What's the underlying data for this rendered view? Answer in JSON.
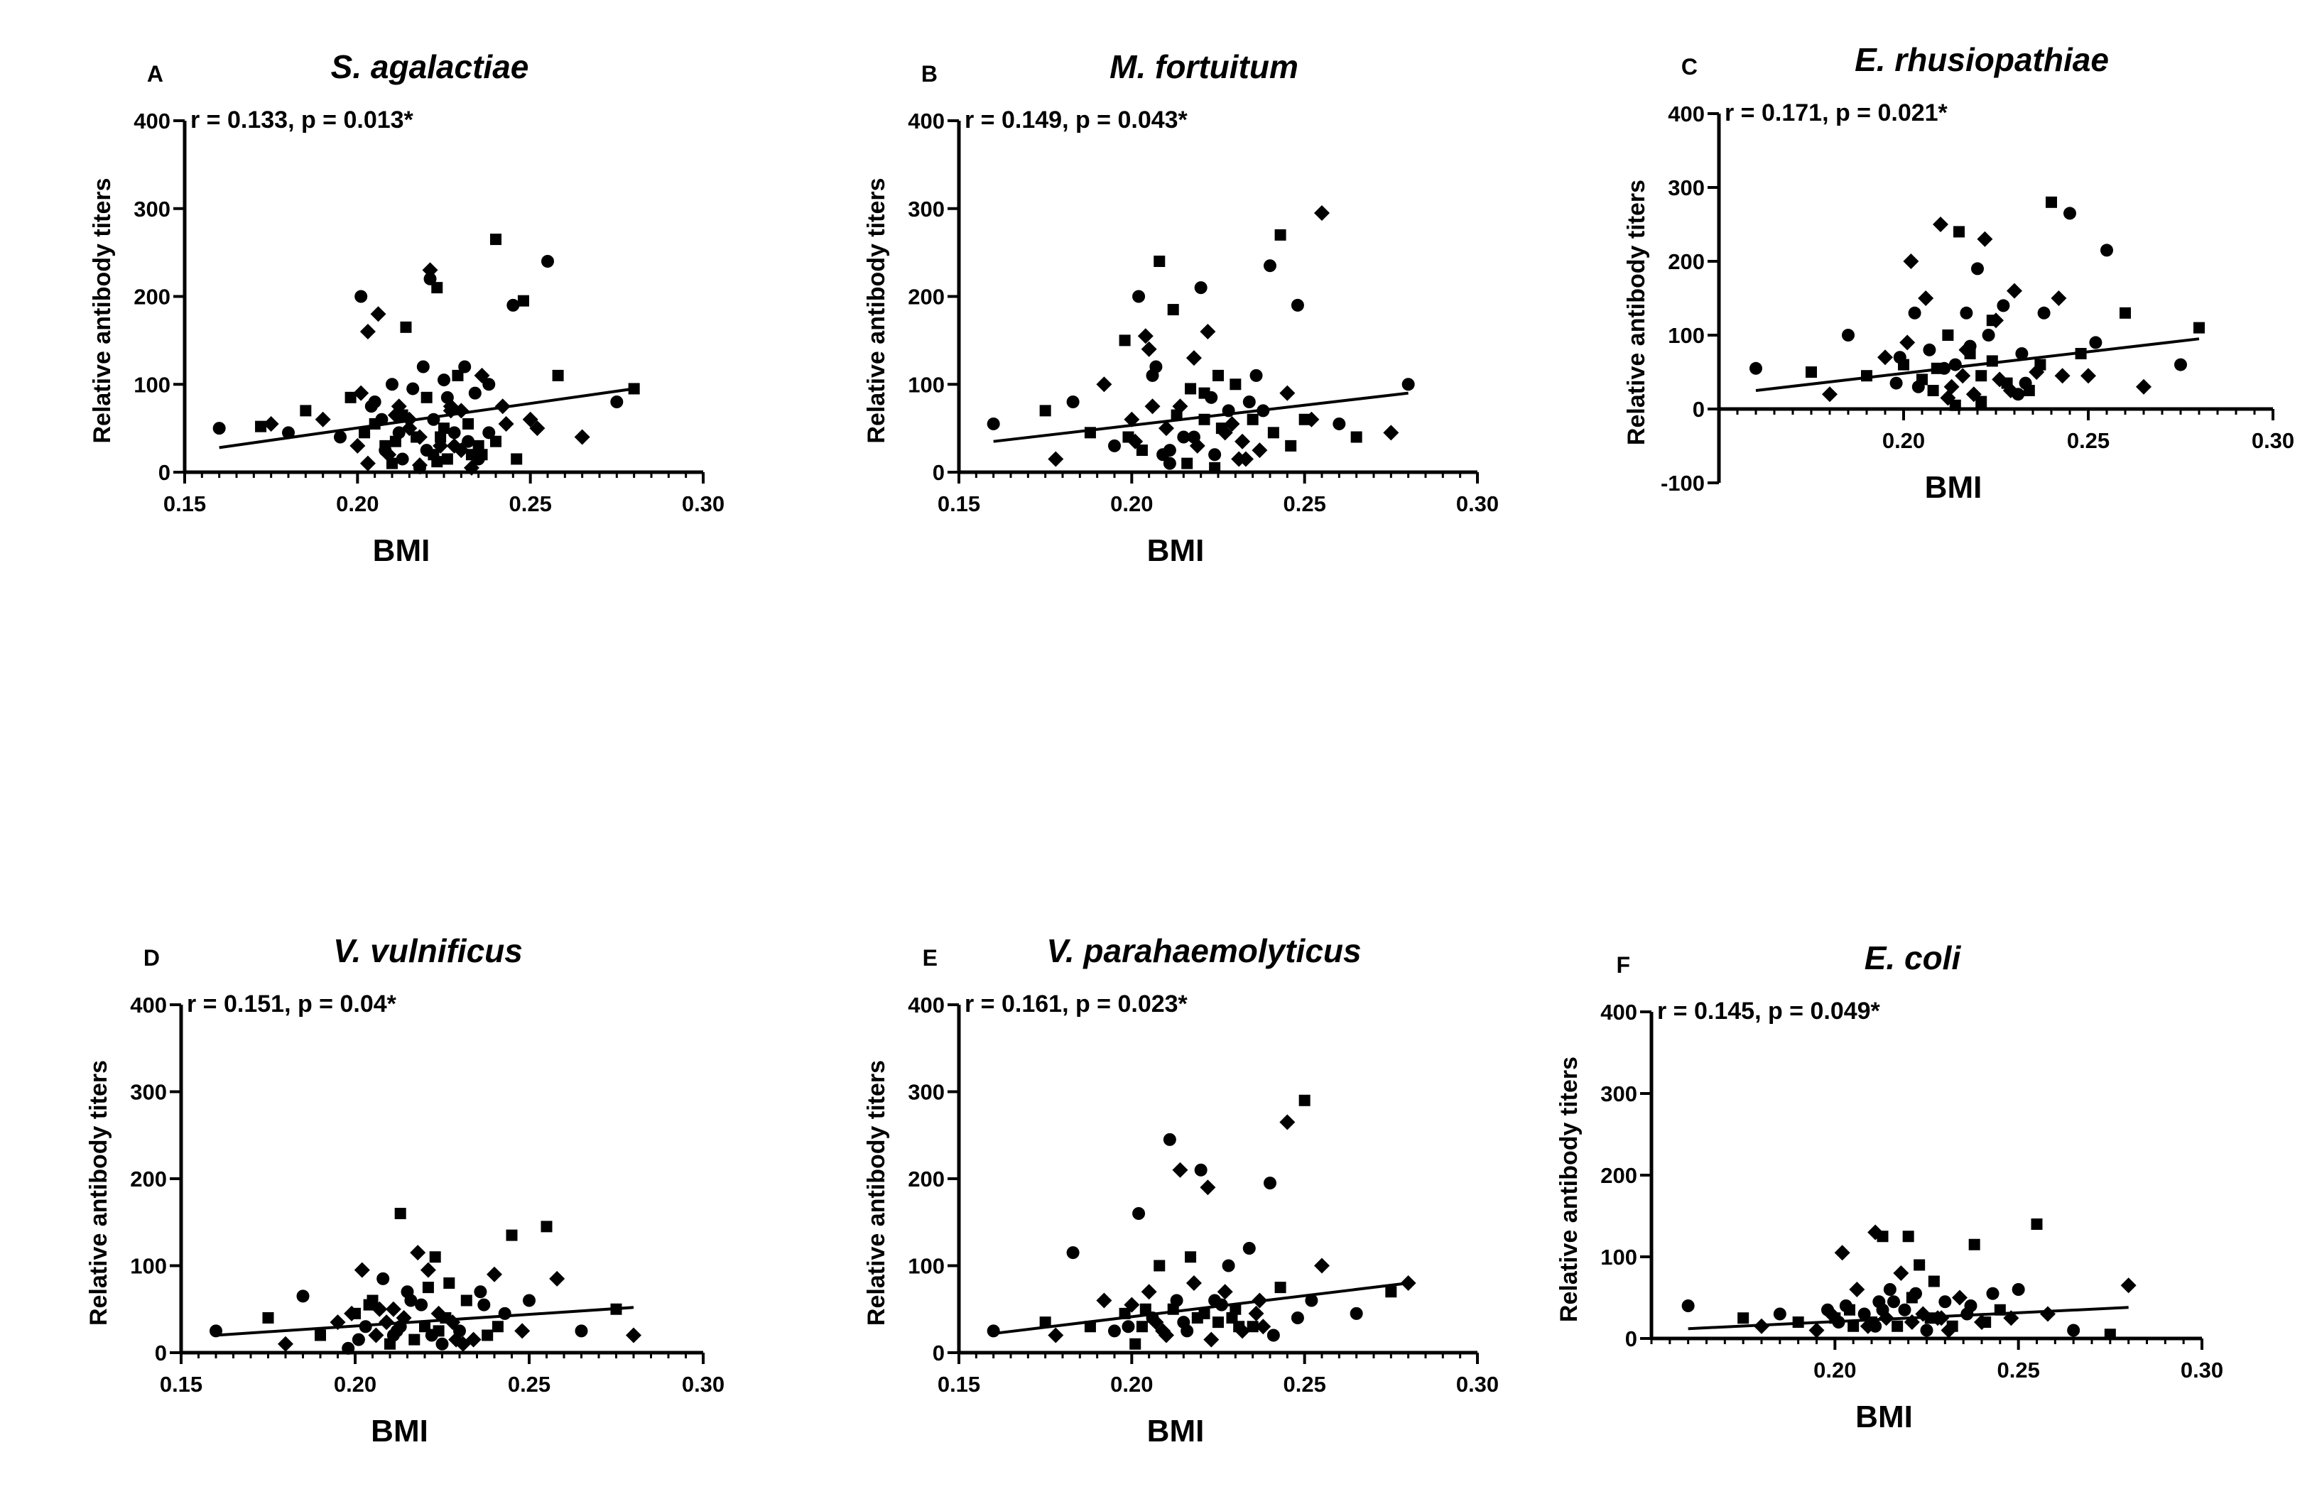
{
  "chart_data": [
    {
      "type": "scatter",
      "panel_label": "A",
      "title": "S. agalactiae",
      "annotation": "r = 0.133, p = 0.013*",
      "xlabel": "BMI",
      "ylabel": "Relative antibody titers",
      "xlim": [
        0.15,
        0.3
      ],
      "ylim": [
        0,
        400
      ],
      "xticks": [
        "0.15",
        "0.20",
        "0.25",
        "0.30"
      ],
      "yticks": [
        "0",
        "100",
        "200",
        "300",
        "400"
      ],
      "regression": {
        "x": [
          0.16,
          0.28
        ],
        "y": [
          28,
          95
        ]
      },
      "series": [
        {
          "name": "S. agalactiae",
          "x": [
            0.16,
            0.172,
            0.175,
            0.18,
            0.185,
            0.19,
            0.195,
            0.198,
            0.2,
            0.201,
            0.202,
            0.203,
            0.204,
            0.205,
            0.206,
            0.207,
            0.208,
            0.209,
            0.21,
            0.211,
            0.212,
            0.213,
            0.214,
            0.215,
            0.216,
            0.217,
            0.218,
            0.219,
            0.22,
            0.221,
            0.222,
            0.223,
            0.224,
            0.225,
            0.226,
            0.227,
            0.228,
            0.229,
            0.23,
            0.231,
            0.232,
            0.233,
            0.234,
            0.235,
            0.236,
            0.238,
            0.24,
            0.242,
            0.245,
            0.248,
            0.25,
            0.255,
            0.258,
            0.265,
            0.275,
            0.28,
            0.203,
            0.208,
            0.213,
            0.218,
            0.221,
            0.223,
            0.227,
            0.232,
            0.236,
            0.243,
            0.205,
            0.21,
            0.215,
            0.22,
            0.225,
            0.23,
            0.235,
            0.24,
            0.201,
            0.212,
            0.222,
            0.228,
            0.238,
            0.246,
            0.252,
            0.218,
            0.224,
            0.211,
            0.226,
            0.233
          ],
          "values": [
            50,
            52,
            55,
            45,
            70,
            60,
            40,
            85,
            30,
            200,
            45,
            10,
            75,
            55,
            180,
            60,
            30,
            20,
            100,
            35,
            75,
            15,
            165,
            50,
            95,
            40,
            8,
            120,
            85,
            230,
            60,
            210,
            30,
            105,
            15,
            75,
            45,
            110,
            25,
            120,
            55,
            5,
            90,
            30,
            110,
            45,
            265,
            75,
            190,
            195,
            60,
            240,
            110,
            40,
            80,
            95,
            160,
            25,
            65,
            40,
            220,
            12,
            70,
            35,
            20,
            55,
            80,
            10,
            60,
            25,
            50,
            70,
            15,
            35,
            90,
            45,
            20,
            30,
            100,
            15,
            50,
            5,
            40,
            65,
            85,
            20
          ]
        }
      ]
    },
    {
      "type": "scatter",
      "panel_label": "B",
      "title": "M. fortuitum",
      "annotation": "r = 0.149, p = 0.043*",
      "xlabel": "BMI",
      "ylabel": "Relative antibody titers",
      "xlim": [
        0.15,
        0.3
      ],
      "ylim": [
        0,
        400
      ],
      "xticks": [
        "0.15",
        "0.20",
        "0.25",
        "0.30"
      ],
      "yticks": [
        "0",
        "100",
        "200",
        "300",
        "400"
      ],
      "regression": {
        "x": [
          0.16,
          0.28
        ],
        "y": [
          35,
          90
        ]
      },
      "series": [
        {
          "name": "M. fortuitum",
          "x": [
            0.16,
            0.175,
            0.178,
            0.183,
            0.188,
            0.192,
            0.195,
            0.198,
            0.2,
            0.202,
            0.203,
            0.205,
            0.206,
            0.208,
            0.21,
            0.211,
            0.212,
            0.214,
            0.215,
            0.217,
            0.218,
            0.22,
            0.221,
            0.222,
            0.224,
            0.225,
            0.227,
            0.228,
            0.23,
            0.232,
            0.234,
            0.235,
            0.237,
            0.24,
            0.243,
            0.245,
            0.248,
            0.25,
            0.255,
            0.26,
            0.265,
            0.275,
            0.28,
            0.199,
            0.204,
            0.209,
            0.213,
            0.219,
            0.223,
            0.226,
            0.231,
            0.236,
            0.241,
            0.201,
            0.207,
            0.216,
            0.229,
            0.238,
            0.246,
            0.252,
            0.211,
            0.221,
            0.233,
            0.218,
            0.224,
            0.206
          ],
          "values": [
            55,
            70,
            15,
            80,
            45,
            100,
            30,
            150,
            60,
            200,
            25,
            140,
            110,
            240,
            50,
            10,
            185,
            75,
            40,
            95,
            130,
            210,
            60,
            160,
            20,
            110,
            45,
            70,
            100,
            35,
            80,
            60,
            25,
            235,
            270,
            90,
            190,
            60,
            295,
            55,
            40,
            45,
            100,
            40,
            155,
            20,
            65,
            30,
            85,
            50,
            15,
            110,
            45,
            35,
            120,
            10,
            55,
            70,
            30,
            60,
            25,
            90,
            15,
            40,
            5,
            75
          ]
        }
      ]
    },
    {
      "type": "scatter",
      "panel_label": "C",
      "title": "E. rhusiopathiae",
      "annotation": "r = 0.171, p = 0.021*",
      "xlabel": "BMI",
      "ylabel": "Relative antibody titers",
      "xlim": [
        0.15,
        0.3
      ],
      "ylim": [
        -100,
        400
      ],
      "xticks": [
        "0.20",
        "0.25",
        "0.30"
      ],
      "yticks": [
        "-100",
        "0",
        "100",
        "200",
        "300",
        "400"
      ],
      "regression": {
        "x": [
          0.16,
          0.28
        ],
        "y": [
          25,
          95
        ]
      },
      "series": [
        {
          "name": "E. rhusiopathiae",
          "x": [
            0.16,
            0.175,
            0.18,
            0.185,
            0.19,
            0.195,
            0.198,
            0.2,
            0.202,
            0.203,
            0.205,
            0.206,
            0.207,
            0.208,
            0.21,
            0.211,
            0.212,
            0.213,
            0.214,
            0.215,
            0.216,
            0.217,
            0.218,
            0.219,
            0.22,
            0.221,
            0.222,
            0.223,
            0.224,
            0.225,
            0.227,
            0.228,
            0.23,
            0.232,
            0.234,
            0.236,
            0.238,
            0.24,
            0.242,
            0.245,
            0.248,
            0.25,
            0.255,
            0.26,
            0.265,
            0.275,
            0.28,
            0.201,
            0.204,
            0.209,
            0.212,
            0.218,
            0.221,
            0.226,
            0.231,
            0.237,
            0.243,
            0.199,
            0.214,
            0.229,
            0.252,
            0.224,
            0.217,
            0.233
          ],
          "values": [
            55,
            50,
            20,
            100,
            45,
            70,
            35,
            60,
            200,
            130,
            40,
            150,
            80,
            25,
            250,
            55,
            100,
            30,
            60,
            240,
            45,
            130,
            75,
            20,
            190,
            45,
            230,
            100,
            65,
            120,
            140,
            35,
            160,
            75,
            25,
            50,
            130,
            280,
            150,
            265,
            75,
            45,
            215,
            130,
            30,
            60,
            110,
            90,
            30,
            55,
            15,
            85,
            10,
            40,
            20,
            60,
            45,
            70,
            5,
            25,
            90,
            120,
            80,
            35
          ]
        }
      ]
    },
    {
      "type": "scatter",
      "panel_label": "D",
      "title": "V. vulnificus",
      "annotation": "r = 0.151, p = 0.04*",
      "xlabel": "BMI",
      "ylabel": "Relative antibody titers",
      "xlim": [
        0.15,
        0.3
      ],
      "ylim": [
        0,
        400
      ],
      "xticks": [
        "0.15",
        "0.20",
        "0.25",
        "0.30"
      ],
      "yticks": [
        "0",
        "100",
        "200",
        "300",
        "400"
      ],
      "regression": {
        "x": [
          0.16,
          0.28
        ],
        "y": [
          20,
          52
        ]
      },
      "series": [
        {
          "name": "V. vulnificus",
          "x": [
            0.16,
            0.175,
            0.18,
            0.185,
            0.19,
            0.195,
            0.198,
            0.2,
            0.202,
            0.203,
            0.205,
            0.206,
            0.208,
            0.21,
            0.211,
            0.212,
            0.213,
            0.214,
            0.215,
            0.217,
            0.218,
            0.219,
            0.22,
            0.221,
            0.222,
            0.223,
            0.224,
            0.225,
            0.227,
            0.228,
            0.23,
            0.232,
            0.234,
            0.236,
            0.238,
            0.24,
            0.243,
            0.245,
            0.248,
            0.25,
            0.255,
            0.258,
            0.265,
            0.275,
            0.28,
            0.201,
            0.204,
            0.209,
            0.216,
            0.226,
            0.231,
            0.237,
            0.241,
            0.199,
            0.211,
            0.221,
            0.229,
            0.213,
            0.224,
            0.207
          ],
          "values": [
            25,
            40,
            10,
            65,
            20,
            35,
            5,
            45,
            95,
            30,
            60,
            20,
            85,
            10,
            50,
            25,
            160,
            40,
            70,
            15,
            115,
            55,
            30,
            95,
            20,
            110,
            45,
            10,
            80,
            35,
            25,
            60,
            15,
            70,
            20,
            90,
            45,
            135,
            25,
            60,
            145,
            85,
            25,
            50,
            20,
            15,
            55,
            35,
            60,
            40,
            10,
            55,
            30,
            45,
            20,
            75,
            15,
            30,
            25,
            50
          ]
        }
      ]
    },
    {
      "type": "scatter",
      "panel_label": "E",
      "title": "V. parahaemolyticus",
      "annotation": "r = 0.161, p = 0.023*",
      "xlabel": "BMI",
      "ylabel": "Relative antibody titers",
      "xlim": [
        0.15,
        0.3
      ],
      "ylim": [
        0,
        400
      ],
      "xticks": [
        "0.15",
        "0.20",
        "0.25",
        "0.30"
      ],
      "yticks": [
        "0",
        "100",
        "200",
        "300",
        "400"
      ],
      "regression": {
        "x": [
          0.16,
          0.28
        ],
        "y": [
          22,
          80
        ]
      },
      "series": [
        {
          "name": "V. parahaemolyticus",
          "x": [
            0.16,
            0.175,
            0.178,
            0.183,
            0.188,
            0.192,
            0.195,
            0.198,
            0.2,
            0.202,
            0.203,
            0.205,
            0.206,
            0.208,
            0.21,
            0.211,
            0.212,
            0.214,
            0.215,
            0.217,
            0.218,
            0.22,
            0.221,
            0.222,
            0.224,
            0.225,
            0.227,
            0.228,
            0.23,
            0.232,
            0.234,
            0.235,
            0.237,
            0.24,
            0.243,
            0.245,
            0.248,
            0.25,
            0.255,
            0.265,
            0.275,
            0.28,
            0.199,
            0.204,
            0.209,
            0.213,
            0.219,
            0.223,
            0.226,
            0.231,
            0.236,
            0.241,
            0.201,
            0.207,
            0.216,
            0.229,
            0.238,
            0.252
          ],
          "values": [
            25,
            35,
            20,
            115,
            30,
            60,
            25,
            45,
            55,
            160,
            30,
            70,
            40,
            100,
            20,
            245,
            50,
            210,
            35,
            110,
            80,
            210,
            45,
            190,
            60,
            35,
            70,
            100,
            50,
            25,
            120,
            30,
            60,
            195,
            75,
            265,
            40,
            290,
            100,
            45,
            70,
            80,
            30,
            50,
            25,
            60,
            40,
            15,
            55,
            30,
            45,
            20,
            10,
            35,
            25,
            40,
            30,
            60
          ]
        }
      ]
    },
    {
      "type": "scatter",
      "panel_label": "F",
      "title": "E. coli",
      "annotation": "r = 0.145, p = 0.049*",
      "xlabel": "BMI",
      "ylabel": "Relative antibody titers",
      "xlim": [
        0.15,
        0.3
      ],
      "ylim": [
        0,
        400
      ],
      "xticks": [
        "0.20",
        "0.25",
        "0.30"
      ],
      "yticks": [
        "0",
        "100",
        "200",
        "300",
        "400"
      ],
      "regression": {
        "x": [
          0.16,
          0.28
        ],
        "y": [
          12,
          38
        ]
      },
      "series": [
        {
          "name": "E. coli",
          "x": [
            0.16,
            0.175,
            0.18,
            0.185,
            0.19,
            0.195,
            0.198,
            0.2,
            0.202,
            0.203,
            0.205,
            0.206,
            0.208,
            0.21,
            0.211,
            0.212,
            0.213,
            0.214,
            0.215,
            0.217,
            0.218,
            0.219,
            0.22,
            0.221,
            0.222,
            0.223,
            0.224,
            0.225,
            0.227,
            0.228,
            0.23,
            0.232,
            0.234,
            0.236,
            0.238,
            0.24,
            0.243,
            0.245,
            0.248,
            0.25,
            0.255,
            0.258,
            0.265,
            0.275,
            0.28,
            0.201,
            0.204,
            0.209,
            0.216,
            0.226,
            0.231,
            0.237,
            0.241,
            0.199,
            0.211,
            0.221,
            0.229,
            0.213
          ],
          "values": [
            40,
            25,
            15,
            30,
            20,
            10,
            35,
            25,
            105,
            40,
            15,
            60,
            30,
            20,
            130,
            45,
            125,
            25,
            60,
            15,
            80,
            35,
            125,
            20,
            55,
            90,
            30,
            10,
            70,
            25,
            45,
            15,
            50,
            30,
            115,
            20,
            55,
            35,
            25,
            60,
            140,
            30,
            10,
            5,
            65,
            20,
            35,
            15,
            45,
            25,
            10,
            40,
            20,
            30,
            15,
            50,
            25,
            35
          ]
        }
      ]
    }
  ]
}
